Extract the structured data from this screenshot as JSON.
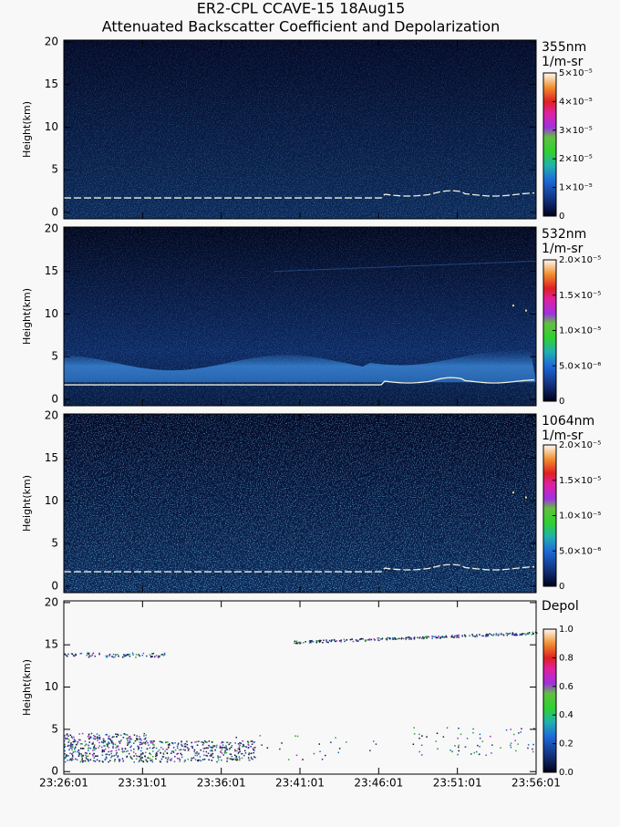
{
  "title": "ER2-CPL CCAVE-15 18Aug15",
  "subtitle": "Attenuated Backscatter Coefficient and Depolarization",
  "chart_data": [
    {
      "type": "heatmap",
      "label": "355nm",
      "unit": "1/m-sr",
      "ylabel": "Height(km)",
      "ylim": [
        -0.75,
        20.2
      ],
      "yticks": [
        0,
        5,
        10,
        15,
        20
      ],
      "clim": [
        0,
        5e-05
      ],
      "cticks": [
        0,
        {
          "value": 1e-05,
          "label": "1×10⁻⁵"
        },
        {
          "value": 2e-05,
          "label": "2×10⁻⁵"
        },
        {
          "value": 3e-05,
          "label": "3×10⁻⁵"
        },
        {
          "value": 4e-05,
          "label": "4×10⁻⁵"
        },
        {
          "value": 5e-05,
          "label": "5×10⁻⁵"
        }
      ]
    },
    {
      "type": "heatmap",
      "label": "532nm",
      "unit": "1/m-sr",
      "ylabel": "Height(km)",
      "ylim": [
        -0.75,
        20.2
      ],
      "yticks": [
        0,
        5,
        10,
        15,
        20
      ],
      "clim": [
        0,
        2e-05
      ],
      "cticks": [
        0,
        {
          "value": 5e-06,
          "label": "5.0×10⁻⁶"
        },
        {
          "value": 1e-05,
          "label": "1.0×10⁻⁵"
        },
        {
          "value": 1.5e-05,
          "label": "1.5×10⁻⁵"
        },
        {
          "value": 2e-05,
          "label": "2.0×10⁻⁵"
        }
      ]
    },
    {
      "type": "heatmap",
      "label": "1064nm",
      "unit": "1/m-sr",
      "ylabel": "Height(km)",
      "ylim": [
        -0.75,
        20.2
      ],
      "yticks": [
        0,
        5,
        10,
        15,
        20
      ],
      "clim": [
        0,
        2e-05
      ],
      "cticks": [
        0,
        {
          "value": 5e-06,
          "label": "5.0×10⁻⁶"
        },
        {
          "value": 1e-05,
          "label": "1.0×10⁻⁵"
        },
        {
          "value": 1.5e-05,
          "label": "1.5×10⁻⁵"
        },
        {
          "value": 2e-05,
          "label": "2.0×10⁻⁵"
        }
      ]
    },
    {
      "type": "depol",
      "label": "Depol",
      "ylabel": "Height(km)",
      "ylim": [
        -0.3,
        20.2
      ],
      "yticks": [
        0,
        5,
        10,
        15,
        20
      ],
      "clim": [
        0,
        1
      ],
      "cticks": [
        {
          "value": 0,
          "label": "0.0"
        },
        {
          "value": 0.2,
          "label": "0.2"
        },
        {
          "value": 0.4,
          "label": "0.4"
        },
        {
          "value": 0.6,
          "label": "0.6"
        },
        {
          "value": 0.8,
          "label": "0.8"
        },
        {
          "value": 1,
          "label": "1.0"
        }
      ],
      "x_labels": [
        "23:26:01",
        "23:31:01",
        "23:36:01",
        "23:41:01",
        "23:46:01",
        "23:51:01",
        "23:56:01"
      ]
    }
  ]
}
